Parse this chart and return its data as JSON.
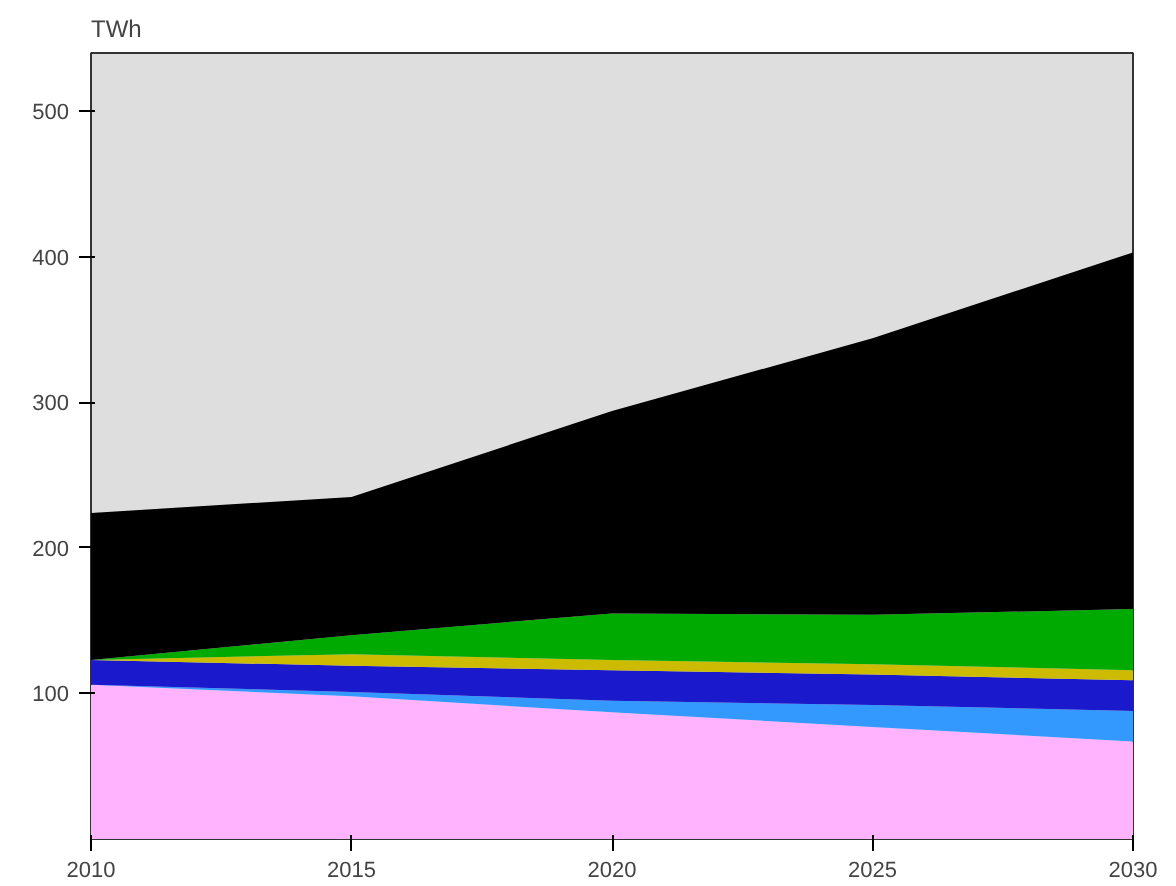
{
  "chart_data": {
    "type": "area",
    "stacked": true,
    "ylabel": "TWh",
    "x": [
      2010,
      2015,
      2020,
      2025,
      2030
    ],
    "xlim": [
      2010,
      2030
    ],
    "xticks": [
      2010,
      2015,
      2020,
      2025,
      2030
    ],
    "ylim": [
      0,
      540
    ],
    "yticks": [
      100,
      200,
      300,
      400,
      500
    ],
    "grid": false,
    "series": [
      {
        "color": "#ffb3ff",
        "values": [
          106,
          98,
          87,
          77,
          67
        ]
      },
      {
        "color": "#3399ff",
        "values": [
          0,
          3,
          8,
          15,
          21
        ]
      },
      {
        "color": "#1a1acc",
        "values": [
          17,
          18,
          21,
          21,
          21
        ]
      },
      {
        "color": "#ccbb00",
        "values": [
          0,
          8,
          7,
          7,
          7
        ]
      },
      {
        "color": "#00aa00",
        "values": [
          0,
          13,
          32,
          34,
          42
        ]
      },
      {
        "color": "#000000",
        "values": [
          101,
          95,
          139,
          190,
          245
        ]
      }
    ]
  }
}
